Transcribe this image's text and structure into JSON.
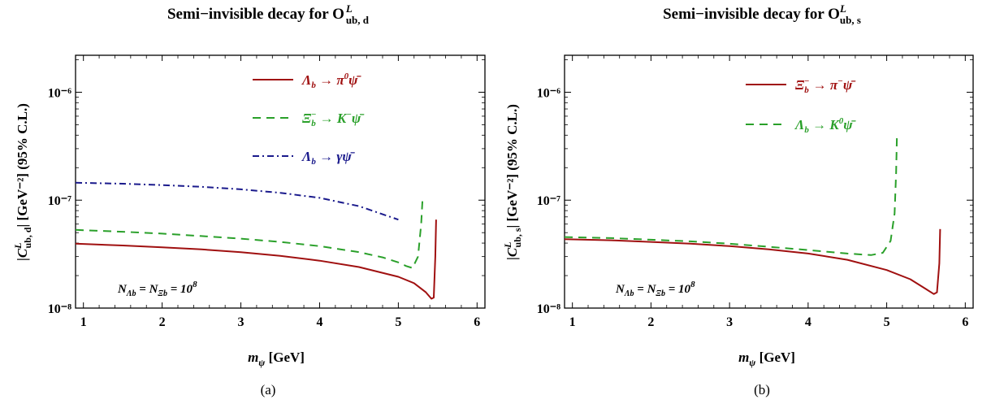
{
  "chart_data": [
    {
      "type": "line",
      "title": "Semi−invisible decay for O",
      "title_sup": "L",
      "title_sub": "ub, d",
      "xlabel": "m",
      "xlabel_sub": "ψ",
      "xlabel_unit": " [GeV]",
      "ylabel": "|C",
      "ylabel_sup": "L",
      "ylabel_sub": "ub, d",
      "ylabel_tail": "| [GeV⁻²] (95% C.L.)",
      "xlim": [
        0.9,
        6.1
      ],
      "ylim": [
        1e-08,
        2.2e-06
      ],
      "yscale": "log",
      "xticks": [
        "1",
        "2",
        "3",
        "4",
        "5",
        "6"
      ],
      "xtick_values": [
        1,
        2,
        3,
        4,
        5,
        6
      ],
      "yticks": [
        "10⁻⁸",
        "10⁻⁷",
        "10⁻⁶"
      ],
      "ytick_values": [
        1e-08,
        1e-07,
        1e-06
      ],
      "annotation": "NΛᵦ = NΞᵦ = 10⁸",
      "annotation_parts": {
        "n1": "N",
        "s1": "Λb",
        "mid": " = N",
        "s2": "Ξb",
        "tail": " = 10",
        "sup": "8"
      },
      "caption": "(a)",
      "legend_position": "top-right",
      "series": [
        {
          "name": "Λ_b → π⁰ ψ̄",
          "legend_main": "Λ",
          "legend_sub": "b",
          "legend_arrow": " → π",
          "legend_sup": "0",
          "legend_end": "ψ̄",
          "color": "#a01010",
          "dash": "solid",
          "x": [
            0.9,
            1.5,
            2.0,
            2.5,
            3.0,
            3.5,
            4.0,
            4.5,
            5.0,
            5.2,
            5.35,
            5.42,
            5.45,
            5.47,
            5.48
          ],
          "y": [
            3.95e-08,
            3.8e-08,
            3.65e-08,
            3.5e-08,
            3.3e-08,
            3.05e-08,
            2.75e-08,
            2.4e-08,
            1.95e-08,
            1.7e-08,
            1.4e-08,
            1.22e-08,
            1.25e-08,
            3e-08,
            6.6e-08
          ]
        },
        {
          "name": "Ξ_b⁻ → K⁻ ψ̄",
          "legend_main": "Ξ",
          "legend_sub": "b",
          "legend_supm": "−",
          "legend_arrow": " → K",
          "legend_sup": "−",
          "legend_end": "ψ̄",
          "color": "#2aa02a",
          "dash": "10,7",
          "x": [
            0.9,
            1.5,
            2.0,
            2.5,
            3.0,
            3.5,
            4.0,
            4.5,
            4.8,
            5.0,
            5.1,
            5.18,
            5.25,
            5.29,
            5.31
          ],
          "y": [
            5.3e-08,
            5.1e-08,
            4.9e-08,
            4.65e-08,
            4.4e-08,
            4.1e-08,
            3.75e-08,
            3.3e-08,
            2.95e-08,
            2.65e-08,
            2.45e-08,
            2.35e-08,
            3e-08,
            6e-08,
            1.1e-07
          ]
        },
        {
          "name": "Λ_b → γ ψ̄",
          "legend_main": "Λ",
          "legend_sub": "b",
          "legend_arrow": " → γ",
          "legend_sup": "",
          "legend_end": "ψ̄",
          "color": "#1a1a8c",
          "dash": "8,4,2,4",
          "x": [
            0.9,
            1.5,
            2.0,
            2.5,
            3.0,
            3.5,
            4.0,
            4.5,
            5.0
          ],
          "y": [
            1.45e-07,
            1.42e-07,
            1.38e-07,
            1.33e-07,
            1.26e-07,
            1.17e-07,
            1.05e-07,
            8.8e-08,
            6.6e-08
          ]
        }
      ]
    },
    {
      "type": "line",
      "title": "Semi−invisible decay for O",
      "title_sup": "L",
      "title_sub": "ub, s",
      "xlabel": "m",
      "xlabel_sub": "ψ",
      "xlabel_unit": " [GeV]",
      "ylabel": "|C",
      "ylabel_sup": "L",
      "ylabel_sub": "ub, s",
      "ylabel_tail": "| [GeV⁻²] (95% C.L.)",
      "xlim": [
        0.9,
        6.1
      ],
      "ylim": [
        1e-08,
        2.2e-06
      ],
      "yscale": "log",
      "xticks": [
        "1",
        "2",
        "3",
        "4",
        "5",
        "6"
      ],
      "xtick_values": [
        1,
        2,
        3,
        4,
        5,
        6
      ],
      "yticks": [
        "10⁻⁸",
        "10⁻⁷",
        "10⁻⁶"
      ],
      "ytick_values": [
        1e-08,
        1e-07,
        1e-06
      ],
      "annotation": "NΛᵦ = NΞᵦ = 10⁸",
      "annotation_parts": {
        "n1": "N",
        "s1": "Λb",
        "mid": " = N",
        "s2": "Ξb",
        "tail": " = 10",
        "sup": "8"
      },
      "caption": "(b)",
      "legend_position": "top-right",
      "series": [
        {
          "name": "Ξ_b⁻ → π⁻ ψ̄",
          "legend_main": "Ξ",
          "legend_sub": "b",
          "legend_supm": "−",
          "legend_arrow": " → π",
          "legend_sup": "−",
          "legend_end": "ψ̄",
          "color": "#a01010",
          "dash": "solid",
          "x": [
            0.9,
            1.5,
            2.0,
            2.5,
            3.0,
            3.5,
            4.0,
            4.5,
            5.0,
            5.3,
            5.5,
            5.6,
            5.64,
            5.67,
            5.68
          ],
          "y": [
            4.35e-08,
            4.25e-08,
            4.1e-08,
            3.95e-08,
            3.75e-08,
            3.5e-08,
            3.2e-08,
            2.8e-08,
            2.25e-08,
            1.85e-08,
            1.5e-08,
            1.35e-08,
            1.4e-08,
            2.6e-08,
            5.4e-08
          ]
        },
        {
          "name": "Λ_b → K⁰ ψ̄",
          "legend_main": "Λ",
          "legend_sub": "b",
          "legend_arrow": " → K",
          "legend_sup": "0",
          "legend_end": "ψ̄",
          "color": "#2aa02a",
          "dash": "10,7",
          "x": [
            0.9,
            1.5,
            2.0,
            2.5,
            3.0,
            3.5,
            4.0,
            4.5,
            4.8,
            4.95,
            5.05,
            5.1,
            5.12,
            5.13
          ],
          "y": [
            4.55e-08,
            4.45e-08,
            4.3e-08,
            4.15e-08,
            3.95e-08,
            3.7e-08,
            3.45e-08,
            3.2e-08,
            3.1e-08,
            3.25e-08,
            4.2e-08,
            7.5e-08,
            1.8e-07,
            4e-07
          ]
        }
      ]
    }
  ]
}
